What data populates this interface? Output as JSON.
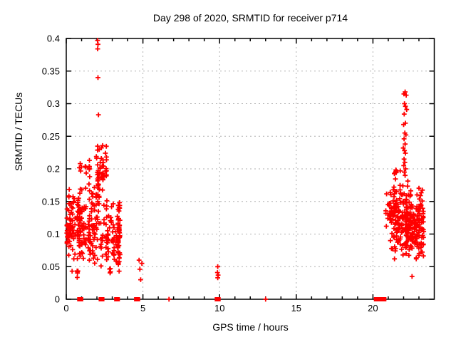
{
  "chart_data": {
    "type": "scatter",
    "title": "Day 298 of 2020, SRMTID for receiver p714",
    "xlabel": "GPS time / hours",
    "ylabel": "SRMTID / TECUs",
    "xlim": [
      0,
      24
    ],
    "ylim": [
      0,
      0.4
    ],
    "x_major_ticks": [
      0,
      5,
      10,
      15,
      20
    ],
    "x_tick_labels": [
      "0",
      "5",
      "10",
      "15",
      "20"
    ],
    "x_minor_step": 1,
    "y_major_ticks": [
      0,
      0.05,
      0.1,
      0.15,
      0.2,
      0.25,
      0.3,
      0.35,
      0.4
    ],
    "y_tick_labels": [
      "0",
      "0.05",
      "0.1",
      "0.15",
      "0.2",
      "0.25",
      "0.3",
      "0.35",
      "0.4"
    ],
    "grid": true,
    "legend": "none",
    "marker": "plus",
    "series_name": "SRMTID",
    "series_color": "#ff0000",
    "grid_color": "#b0b0b0",
    "border_color": "#000000",
    "seed": 20201024,
    "isolated_points": [
      [
        2.04,
        0.397
      ],
      [
        2.07,
        0.391
      ],
      [
        2.05,
        0.384
      ],
      [
        2.07,
        0.34
      ],
      [
        2.1,
        0.283
      ],
      [
        22.55,
        0.035
      ]
    ],
    "low_group_points": [
      [
        4.75,
        0.06
      ],
      [
        4.93,
        0.055
      ],
      [
        4.8,
        0.046
      ],
      [
        4.85,
        0.03
      ],
      [
        9.88,
        0.05
      ],
      [
        9.86,
        0.041
      ],
      [
        9.9,
        0.037
      ],
      [
        9.88,
        0.033
      ]
    ],
    "high_streak_points": [
      [
        22.1,
        0.318
      ],
      [
        22.02,
        0.315
      ],
      [
        22.17,
        0.313
      ],
      [
        22.06,
        0.3
      ],
      [
        22.12,
        0.296
      ],
      [
        22.2,
        0.291
      ],
      [
        22.04,
        0.284
      ],
      [
        22.12,
        0.27
      ],
      [
        22.0,
        0.268
      ],
      [
        22.08,
        0.255
      ],
      [
        22.15,
        0.252
      ],
      [
        22.03,
        0.246
      ],
      [
        22.1,
        0.238
      ],
      [
        21.98,
        0.232
      ],
      [
        22.06,
        0.228
      ],
      [
        22.12,
        0.224
      ],
      [
        22.03,
        0.215
      ],
      [
        22.08,
        0.21
      ],
      [
        22.01,
        0.205
      ],
      [
        22.13,
        0.2
      ],
      [
        22.05,
        0.195
      ],
      [
        22.1,
        0.19
      ]
    ],
    "clusters": [
      {
        "x": [
          0.02,
          0.68
        ],
        "y": [
          0.055,
          0.175
        ],
        "n": 70
      },
      {
        "x": [
          0.05,
          2.65
        ],
        "y": [
          0.186,
          0.214
        ],
        "n": 22
      },
      {
        "x": [
          0.7,
          2.15
        ],
        "y": [
          0.048,
          0.185
        ],
        "n": 150
      },
      {
        "x": [
          1.9,
          2.65
        ],
        "y": [
          0.145,
          0.248
        ],
        "n": 50
      },
      {
        "x": [
          2.2,
          3.55
        ],
        "y": [
          0.04,
          0.158
        ],
        "n": 90
      },
      {
        "x": [
          3.25,
          3.5
        ],
        "y": [
          0.048,
          0.15
        ],
        "n": 25
      },
      {
        "x": [
          0.3,
          3.3
        ],
        "y": [
          0.032,
          0.05
        ],
        "n": 10
      },
      {
        "x": [
          20.55,
          21.25
        ],
        "y": [
          0.095,
          0.165
        ],
        "n": 16
      },
      {
        "x": [
          21.15,
          22.5
        ],
        "y": [
          0.058,
          0.186
        ],
        "n": 205
      },
      {
        "x": [
          21.4,
          21.95
        ],
        "y": [
          0.182,
          0.205
        ],
        "n": 8
      },
      {
        "x": [
          22.45,
          23.3
        ],
        "y": [
          0.055,
          0.175
        ],
        "n": 110
      }
    ],
    "zero_square_xs": [
      0.85,
      0.97,
      2.25,
      2.35,
      3.26,
      3.36,
      4.56,
      4.68,
      9.82,
      9.93,
      20.2,
      20.34,
      20.48,
      20.62,
      20.74
    ],
    "zero_plus_xs": [
      6.7,
      13.0
    ]
  }
}
